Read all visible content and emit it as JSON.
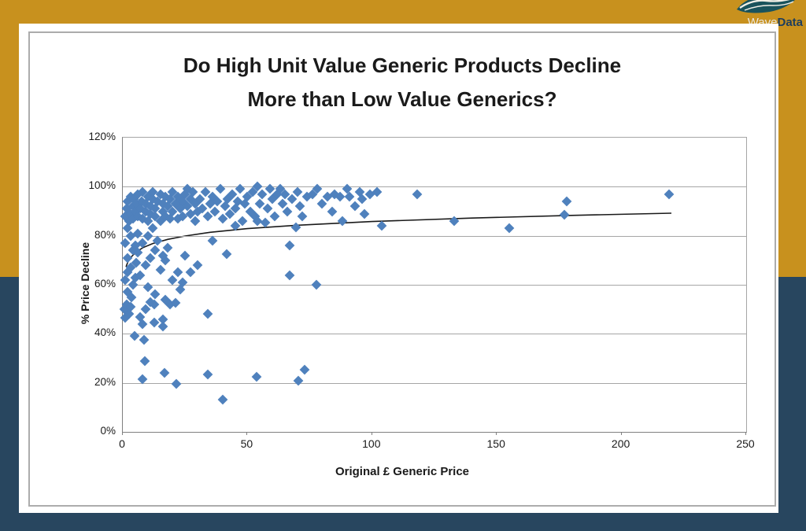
{
  "page": {
    "background_top_color": "#C8911E",
    "background_bottom_color": "#28465F",
    "card_color": "#FFFFFF",
    "frame_border_color": "#ACACAC"
  },
  "logo": {
    "brand_light": "Wave",
    "brand_bold": "Data",
    "brand_light_color": "#EBE8DF",
    "brand_bold_color": "#1C3D5E",
    "wave_icon_color": "#1A535C"
  },
  "chart_data": {
    "type": "scatter",
    "title_line1": "Do High Unit Value Generic Products Decline",
    "title_line2": "More than Low Value Generics?",
    "xlabel": "Original £ Generic Price",
    "ylabel": "% Price Decline",
    "xlim": [
      0,
      250
    ],
    "ylim_pct": [
      0,
      120
    ],
    "x_ticks": [
      0,
      50,
      100,
      150,
      200,
      250
    ],
    "y_ticks_pct": [
      0,
      20,
      40,
      60,
      80,
      100,
      120
    ],
    "y_tick_suffix": "%",
    "grid": true,
    "legend": "none",
    "marker": "diamond",
    "marker_color": "#4F81BD",
    "gridline_color": "#A6A6A6",
    "trend_color": "#1A1A1A",
    "trendline": [
      [
        1.3,
        67.3
      ],
      [
        2,
        69.2
      ],
      [
        3,
        70.9
      ],
      [
        5,
        73.1
      ],
      [
        8,
        75.1
      ],
      [
        12,
        76.8
      ],
      [
        18,
        78.5
      ],
      [
        25,
        79.9
      ],
      [
        35,
        81.4
      ],
      [
        50,
        82.9
      ],
      [
        70,
        84.3
      ],
      [
        100,
        85.8
      ],
      [
        140,
        87.2
      ],
      [
        180,
        88.3
      ],
      [
        220,
        89.2
      ]
    ],
    "points": [
      [
        0.5,
        50
      ],
      [
        1,
        46.5
      ],
      [
        1.5,
        52
      ],
      [
        2.5,
        48
      ],
      [
        3,
        51
      ],
      [
        2,
        57
      ],
      [
        3.5,
        55
      ],
      [
        1,
        62
      ],
      [
        2,
        65
      ],
      [
        4,
        60
      ],
      [
        5,
        63
      ],
      [
        3,
        67
      ],
      [
        5.5,
        69
      ],
      [
        2,
        71
      ],
      [
        4,
        74
      ],
      [
        1,
        77
      ],
      [
        3,
        80
      ],
      [
        5,
        76
      ],
      [
        2,
        83
      ],
      [
        6,
        81
      ],
      [
        6,
        73
      ],
      [
        7,
        47
      ],
      [
        9,
        50
      ],
      [
        12.6,
        52
      ],
      [
        16,
        46
      ],
      [
        11,
        53
      ],
      [
        13,
        56
      ],
      [
        17,
        54
      ],
      [
        19,
        52
      ],
      [
        21,
        52.5
      ],
      [
        23,
        58
      ],
      [
        10,
        59
      ],
      [
        7,
        64
      ],
      [
        9,
        68
      ],
      [
        11,
        71
      ],
      [
        13,
        74
      ],
      [
        15,
        66
      ],
      [
        17,
        70
      ],
      [
        8,
        77
      ],
      [
        10,
        80
      ],
      [
        12,
        83
      ],
      [
        14,
        78
      ],
      [
        16,
        72
      ],
      [
        18,
        75
      ],
      [
        20,
        62
      ],
      [
        22,
        65
      ],
      [
        25,
        72
      ],
      [
        27,
        65
      ],
      [
        30,
        68
      ],
      [
        24,
        61
      ],
      [
        8,
        44
      ],
      [
        12.5,
        44.5
      ],
      [
        16,
        43
      ],
      [
        4.7,
        39
      ],
      [
        8.5,
        37.5
      ],
      [
        8.8,
        29
      ],
      [
        8,
        21.5
      ],
      [
        16.7,
        24
      ],
      [
        21.5,
        19.5
      ],
      [
        34,
        23.5
      ],
      [
        40,
        13
      ],
      [
        53.6,
        22.5
      ],
      [
        70.5,
        21
      ],
      [
        73,
        25.5
      ],
      [
        34,
        48
      ],
      [
        36,
        78
      ],
      [
        41.7,
        72.5
      ],
      [
        1,
        88
      ],
      [
        1.5,
        91
      ],
      [
        2,
        94
      ],
      [
        2.5,
        86
      ],
      [
        3,
        96
      ],
      [
        3,
        89
      ],
      [
        4,
        92
      ],
      [
        4,
        87
      ],
      [
        4.5,
        95
      ],
      [
        5,
        90
      ],
      [
        5.5,
        93
      ],
      [
        6,
        88
      ],
      [
        6,
        97
      ],
      [
        7,
        91
      ],
      [
        7.5,
        94
      ],
      [
        8,
        87
      ],
      [
        8,
        98
      ],
      [
        9,
        90
      ],
      [
        9,
        93
      ],
      [
        10,
        96
      ],
      [
        10,
        86
      ],
      [
        11,
        92
      ],
      [
        11,
        89
      ],
      [
        12,
        95
      ],
      [
        12,
        98
      ],
      [
        13,
        88
      ],
      [
        13,
        91
      ],
      [
        14,
        94
      ],
      [
        15,
        97
      ],
      [
        15,
        86
      ],
      [
        16,
        90
      ],
      [
        16,
        93
      ],
      [
        17,
        96
      ],
      [
        17,
        88
      ],
      [
        18,
        92
      ],
      [
        19,
        95
      ],
      [
        19,
        87
      ],
      [
        20,
        98
      ],
      [
        20,
        90
      ],
      [
        21,
        93
      ],
      [
        22,
        96
      ],
      [
        22,
        87
      ],
      [
        23,
        91
      ],
      [
        24,
        94
      ],
      [
        24,
        88
      ],
      [
        25,
        97
      ],
      [
        26,
        92
      ],
      [
        27,
        95
      ],
      [
        27,
        89
      ],
      [
        28,
        98
      ],
      [
        29,
        93
      ],
      [
        30,
        90
      ],
      [
        29,
        86
      ],
      [
        26,
        99
      ],
      [
        31,
        95
      ],
      [
        32,
        91
      ],
      [
        33,
        98
      ],
      [
        34,
        88
      ],
      [
        35,
        93
      ],
      [
        36,
        96
      ],
      [
        37,
        90
      ],
      [
        38,
        94
      ],
      [
        39,
        99
      ],
      [
        40,
        87
      ],
      [
        41,
        92
      ],
      [
        42,
        95
      ],
      [
        43,
        89
      ],
      [
        44,
        97
      ],
      [
        45,
        91
      ],
      [
        46,
        94
      ],
      [
        47,
        99
      ],
      [
        48,
        86
      ],
      [
        49,
        93
      ],
      [
        50,
        96
      ],
      [
        51,
        90
      ],
      [
        52,
        98
      ],
      [
        53,
        88
      ],
      [
        54,
        100
      ],
      [
        55,
        93
      ],
      [
        56,
        97
      ],
      [
        57,
        85.5
      ],
      [
        58,
        91
      ],
      [
        59,
        99
      ],
      [
        60,
        95
      ],
      [
        61,
        88
      ],
      [
        62,
        97
      ],
      [
        54,
        86
      ],
      [
        45,
        84
      ],
      [
        63,
        99
      ],
      [
        64,
        93
      ],
      [
        65,
        97
      ],
      [
        66,
        90
      ],
      [
        67,
        76
      ],
      [
        67,
        64
      ],
      [
        68,
        95
      ],
      [
        69.5,
        83.5
      ],
      [
        70,
        98
      ],
      [
        71,
        92
      ],
      [
        72,
        88
      ],
      [
        74,
        96
      ],
      [
        76,
        97
      ],
      [
        77.5,
        60
      ],
      [
        78,
        99
      ],
      [
        80,
        93
      ],
      [
        82,
        96
      ],
      [
        84,
        90
      ],
      [
        85,
        97
      ],
      [
        87,
        96
      ],
      [
        88,
        86
      ],
      [
        90,
        99
      ],
      [
        91,
        96
      ],
      [
        93,
        92
      ],
      [
        95,
        98
      ],
      [
        96,
        95
      ],
      [
        97,
        89
      ],
      [
        99,
        97
      ],
      [
        102,
        98
      ],
      [
        104,
        84
      ],
      [
        118,
        97
      ],
      [
        133,
        86
      ],
      [
        155,
        83
      ],
      [
        177,
        88.5
      ],
      [
        178,
        94
      ],
      [
        219,
        97
      ]
    ]
  }
}
